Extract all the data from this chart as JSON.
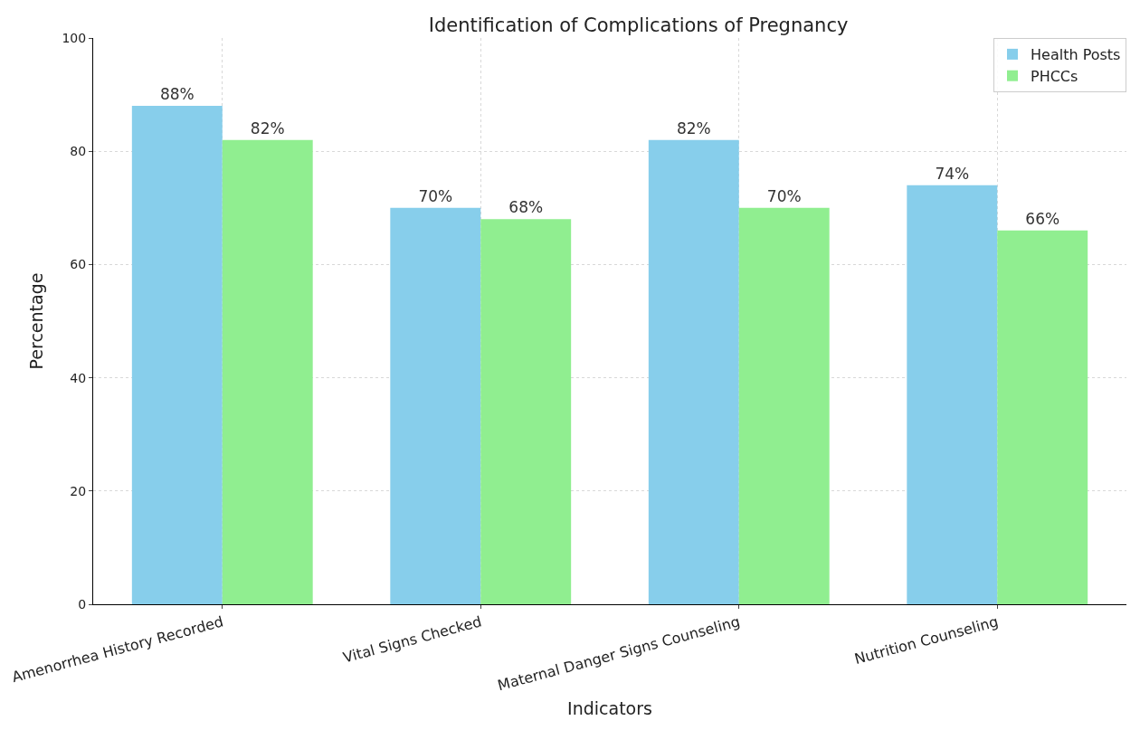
{
  "chart_data": {
    "type": "bar",
    "title": "Identification of Complications of Pregnancy",
    "xlabel": "Indicators",
    "ylabel": "Percentage",
    "categories": [
      "Amenorrhea History Recorded",
      "Vital Signs Checked",
      "Maternal Danger Signs Counseling",
      "Nutrition Counseling"
    ],
    "series": [
      {
        "name": "Health Posts",
        "color": "#87ceeb",
        "values": [
          88,
          70,
          82,
          74
        ],
        "value_labels": [
          "88%",
          "70%",
          "82%",
          "74%"
        ]
      },
      {
        "name": "PHCCs",
        "color": "#90ee90",
        "values": [
          82,
          68,
          70,
          66
        ],
        "value_labels": [
          "82%",
          "68%",
          "70%",
          "66%"
        ]
      }
    ],
    "ylim": [
      0,
      100
    ],
    "yticks": [
      0,
      20,
      40,
      60,
      80,
      100
    ],
    "grid": true,
    "legend": "top right"
  }
}
